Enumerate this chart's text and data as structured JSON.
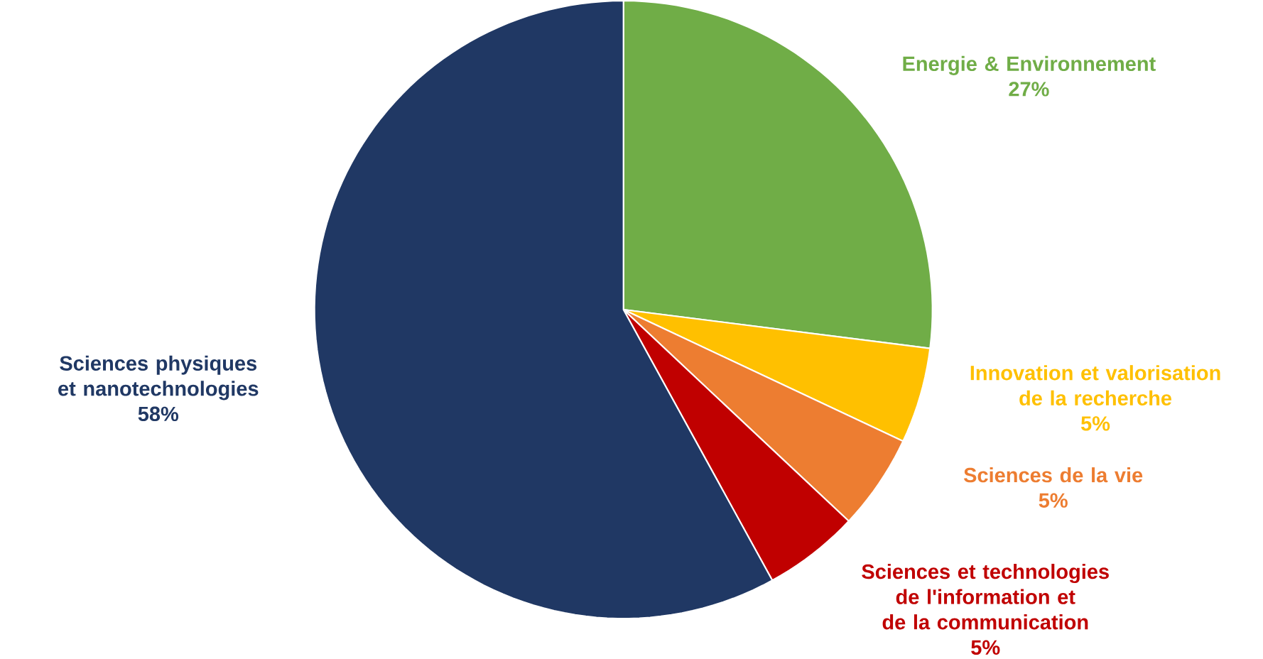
{
  "chart_data": {
    "type": "pie",
    "categories": [
      "Energie & Environnement",
      "Innovation et valorisation de la recherche",
      "Sciences de la vie",
      "Sciences et technologies de l'information et de la communication",
      "Sciences physiques et nanotechnologies"
    ],
    "values": [
      27,
      5,
      5,
      5,
      58
    ],
    "value_labels": [
      "27%",
      "5%",
      "5%",
      "5%",
      "58%"
    ],
    "colors": [
      "#70ad47",
      "#ffc000",
      "#ed7d31",
      "#c00000",
      "#203864"
    ]
  }
}
